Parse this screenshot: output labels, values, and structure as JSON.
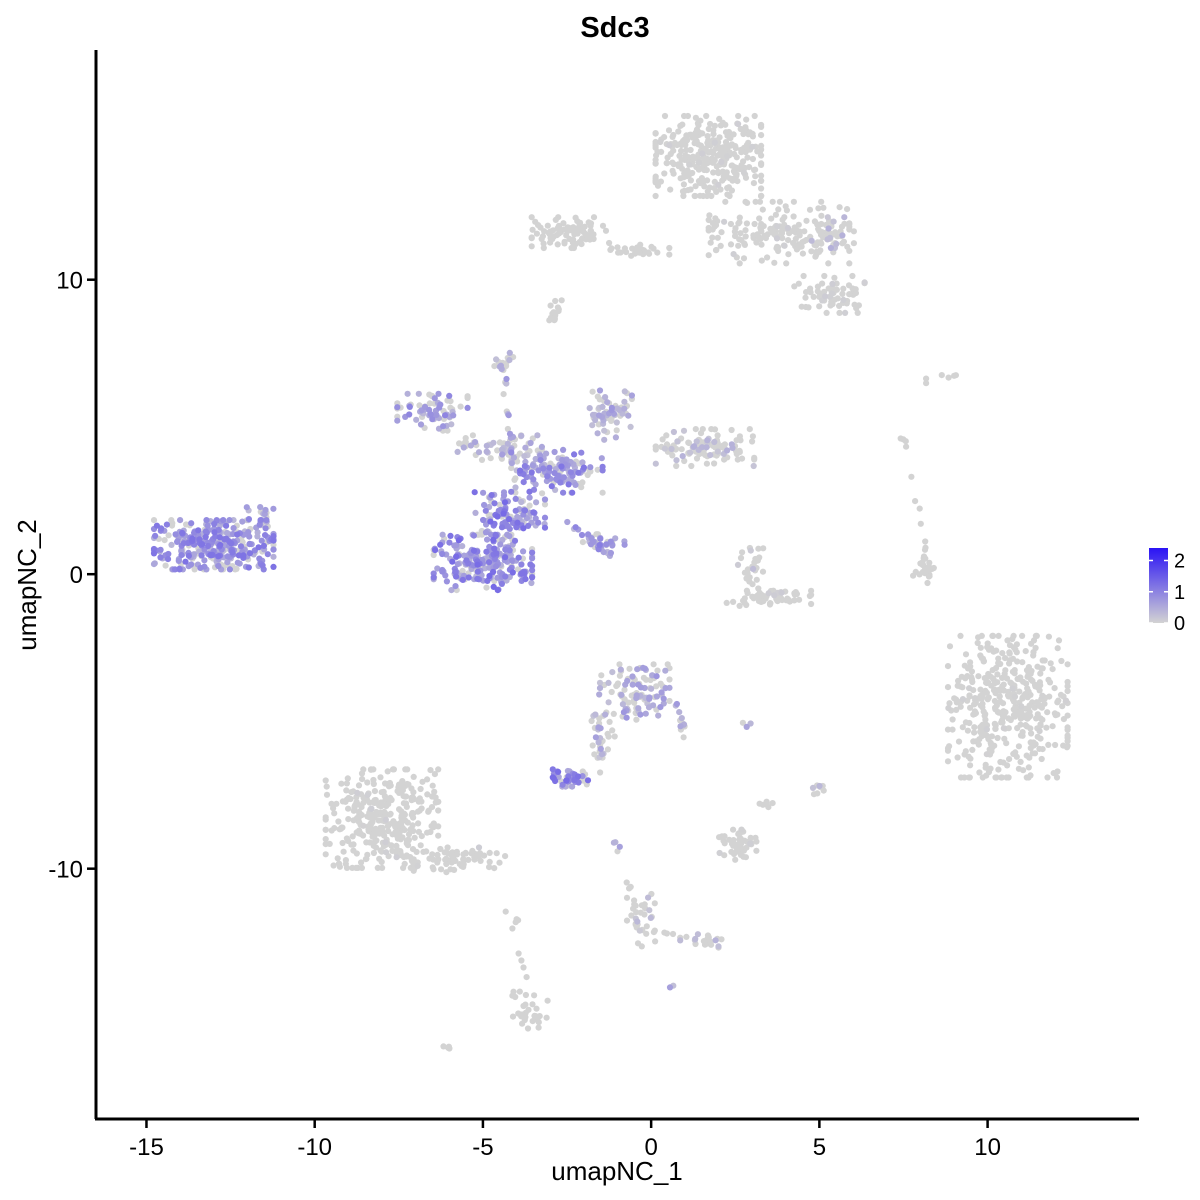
{
  "chart_data": {
    "type": "scatter",
    "title": "Sdc3",
    "xlabel": "umapNC_1",
    "ylabel": "umapNC_2",
    "xlim": [
      -16.5,
      14.5
    ],
    "ylim": [
      -18.5,
      17.8
    ],
    "x_ticks": [
      -15,
      -10,
      -5,
      0,
      5,
      10
    ],
    "x_tick_labels": [
      "-15",
      "-10",
      "-5",
      "0",
      "5",
      "10"
    ],
    "y_ticks": [
      -10,
      0,
      10
    ],
    "y_tick_labels": [
      "-10",
      "0",
      "10"
    ],
    "grid": false,
    "legend": {
      "position": "right",
      "type": "colorbar",
      "range": [
        0,
        2.4
      ],
      "ticks": [
        0,
        1,
        2
      ],
      "tick_labels": [
        "0",
        "1",
        "2"
      ],
      "low_color": "#D3D3D3",
      "high_color": "#2A13F5"
    },
    "clusters": [
      {
        "cx": 1.7,
        "cy": 14.2,
        "rx": 1.5,
        "ry": 1.3,
        "n": 330,
        "expr": 0.03
      },
      {
        "cx": 3.8,
        "cy": 11.6,
        "rx": 2.0,
        "ry": 1.0,
        "n": 170,
        "expr": 0.04
      },
      {
        "cx": 5.3,
        "cy": 9.5,
        "rx": 1.0,
        "ry": 0.6,
        "n": 70,
        "expr": 0.04
      },
      {
        "cx": 5.4,
        "cy": 11.6,
        "rx": 0.6,
        "ry": 0.5,
        "n": 30,
        "expr": 0.2
      },
      {
        "cx": -2.4,
        "cy": 11.6,
        "rx": 1.1,
        "ry": 0.5,
        "n": 90,
        "expr": 0.0
      },
      {
        "cx": -0.4,
        "cy": 11.0,
        "rx": 0.9,
        "ry": 0.18,
        "n": 25,
        "expr": 0.0
      },
      {
        "cx": -2.9,
        "cy": 8.9,
        "rx": 0.15,
        "ry": 0.4,
        "n": 8,
        "expr": 0.0
      },
      {
        "cx": -13.0,
        "cy": 1.0,
        "rx": 1.7,
        "ry": 0.8,
        "n": 320,
        "expr": 0.55
      },
      {
        "cx": -11.6,
        "cy": 2.0,
        "rx": 0.4,
        "ry": 0.5,
        "n": 20,
        "expr": 0.45
      },
      {
        "cx": -5.0,
        "cy": 0.4,
        "rx": 1.4,
        "ry": 0.9,
        "n": 230,
        "expr": 0.6
      },
      {
        "cx": -4.2,
        "cy": 2.0,
        "rx": 1.0,
        "ry": 0.8,
        "n": 120,
        "expr": 0.6
      },
      {
        "cx": -2.8,
        "cy": 3.5,
        "rx": 1.3,
        "ry": 0.7,
        "n": 130,
        "expr": 0.55
      },
      {
        "cx": -6.5,
        "cy": 5.5,
        "rx": 1.0,
        "ry": 0.6,
        "n": 70,
        "expr": 0.45
      },
      {
        "cx": -4.5,
        "cy": 4.3,
        "rx": 1.2,
        "ry": 0.4,
        "n": 60,
        "expr": 0.3
      },
      {
        "cx": -1.2,
        "cy": 5.4,
        "rx": 0.6,
        "ry": 0.8,
        "n": 60,
        "expr": 0.35
      },
      {
        "cx": 1.6,
        "cy": 4.3,
        "rx": 1.4,
        "ry": 0.6,
        "n": 110,
        "expr": 0.2
      },
      {
        "cx": -4.4,
        "cy": 7.2,
        "rx": 0.3,
        "ry": 0.3,
        "n": 15,
        "expr": 0.3
      },
      {
        "cx": -1.4,
        "cy": 1.2,
        "rx": 0.6,
        "ry": 0.3,
        "n": 20,
        "expr": 0.45
      },
      {
        "cx": 3.5,
        "cy": -0.8,
        "rx": 1.2,
        "ry": 0.3,
        "n": 60,
        "expr": 0.05
      },
      {
        "cx": 3.0,
        "cy": 0.3,
        "rx": 0.4,
        "ry": 0.8,
        "n": 25,
        "expr": 0.15
      },
      {
        "cx": 8.1,
        "cy": 0.2,
        "rx": 0.3,
        "ry": 0.6,
        "n": 20,
        "expr": 0.0
      },
      {
        "cx": 10.6,
        "cy": -4.5,
        "rx": 1.7,
        "ry": 2.3,
        "n": 420,
        "expr": 0.02
      },
      {
        "cx": -8.0,
        "cy": -8.3,
        "rx": 1.6,
        "ry": 1.6,
        "n": 340,
        "expr": 0.03
      },
      {
        "cx": -5.7,
        "cy": -9.7,
        "rx": 1.3,
        "ry": 0.4,
        "n": 70,
        "expr": 0.04
      },
      {
        "cx": -0.5,
        "cy": -4.0,
        "rx": 1.0,
        "ry": 0.9,
        "n": 110,
        "expr": 0.35
      },
      {
        "cx": -1.5,
        "cy": -5.5,
        "rx": 0.4,
        "ry": 0.7,
        "n": 25,
        "expr": 0.3
      },
      {
        "cx": -2.4,
        "cy": -6.9,
        "rx": 0.5,
        "ry": 0.3,
        "n": 40,
        "expr": 0.6
      },
      {
        "cx": 2.5,
        "cy": -9.2,
        "rx": 0.6,
        "ry": 0.5,
        "n": 50,
        "expr": 0.03
      },
      {
        "cx": 3.4,
        "cy": -7.7,
        "rx": 0.2,
        "ry": 0.2,
        "n": 6,
        "expr": 0.0
      },
      {
        "cx": 5.0,
        "cy": -7.3,
        "rx": 0.25,
        "ry": 0.2,
        "n": 8,
        "expr": 0.3
      },
      {
        "cx": -0.3,
        "cy": -11.8,
        "rx": 0.4,
        "ry": 0.9,
        "n": 25,
        "expr": 0.15
      },
      {
        "cx": 1.7,
        "cy": -12.4,
        "rx": 0.8,
        "ry": 0.2,
        "n": 12,
        "expr": 0.2
      },
      {
        "cx": -3.6,
        "cy": -14.8,
        "rx": 0.5,
        "ry": 0.6,
        "n": 30,
        "expr": 0.0
      },
      {
        "cx": -6.1,
        "cy": -16.0,
        "rx": 0.15,
        "ry": 0.1,
        "n": 4,
        "expr": 0.0
      },
      {
        "cx": 8.8,
        "cy": 6.8,
        "rx": 0.6,
        "ry": 0.3,
        "n": 6,
        "expr": 0.0
      },
      {
        "cx": -1.0,
        "cy": -9.2,
        "rx": 0.2,
        "ry": 0.2,
        "n": 4,
        "expr": 0.5
      },
      {
        "cx": 0.6,
        "cy": -14.0,
        "rx": 0.1,
        "ry": 0.1,
        "n": 2,
        "expr": 0.3
      },
      {
        "cx": 2.8,
        "cy": -5.1,
        "rx": 0.15,
        "ry": 0.1,
        "n": 3,
        "expr": 0.4
      },
      {
        "cx": -4.0,
        "cy": -11.7,
        "rx": 0.1,
        "ry": 0.2,
        "n": 3,
        "expr": 0.0
      }
    ],
    "segments": [
      {
        "x1": -4.4,
        "y1": 7.0,
        "x2": -4.0,
        "y2": 3.0,
        "n": 22,
        "expr": 0.35
      },
      {
        "x1": -2.5,
        "y1": 1.8,
        "x2": -1.2,
        "y2": 0.6,
        "n": 25,
        "expr": 0.5
      },
      {
        "x1": 0.8,
        "y1": -4.4,
        "x2": 1.0,
        "y2": -5.6,
        "n": 12,
        "expr": 0.35
      },
      {
        "x1": -1.5,
        "y1": -5.5,
        "x2": -1.6,
        "y2": -6.9,
        "n": 8,
        "expr": 0.3
      },
      {
        "x1": -0.7,
        "y1": -10.3,
        "x2": -0.4,
        "y2": -12.0,
        "n": 10,
        "expr": 0.2
      },
      {
        "x1": -0.4,
        "y1": -12.0,
        "x2": 2.4,
        "y2": -12.7,
        "n": 15,
        "expr": 0.15
      },
      {
        "x1": -2.7,
        "y1": 9.3,
        "x2": -3.0,
        "y2": 8.5,
        "n": 6,
        "expr": 0.0
      },
      {
        "x1": 7.5,
        "y1": 4.8,
        "x2": 8.3,
        "y2": -0.3,
        "n": 14,
        "expr": 0.0
      },
      {
        "x1": -4.3,
        "y1": -11.5,
        "x2": -3.6,
        "y2": -14.0,
        "n": 6,
        "expr": 0.0
      }
    ]
  }
}
